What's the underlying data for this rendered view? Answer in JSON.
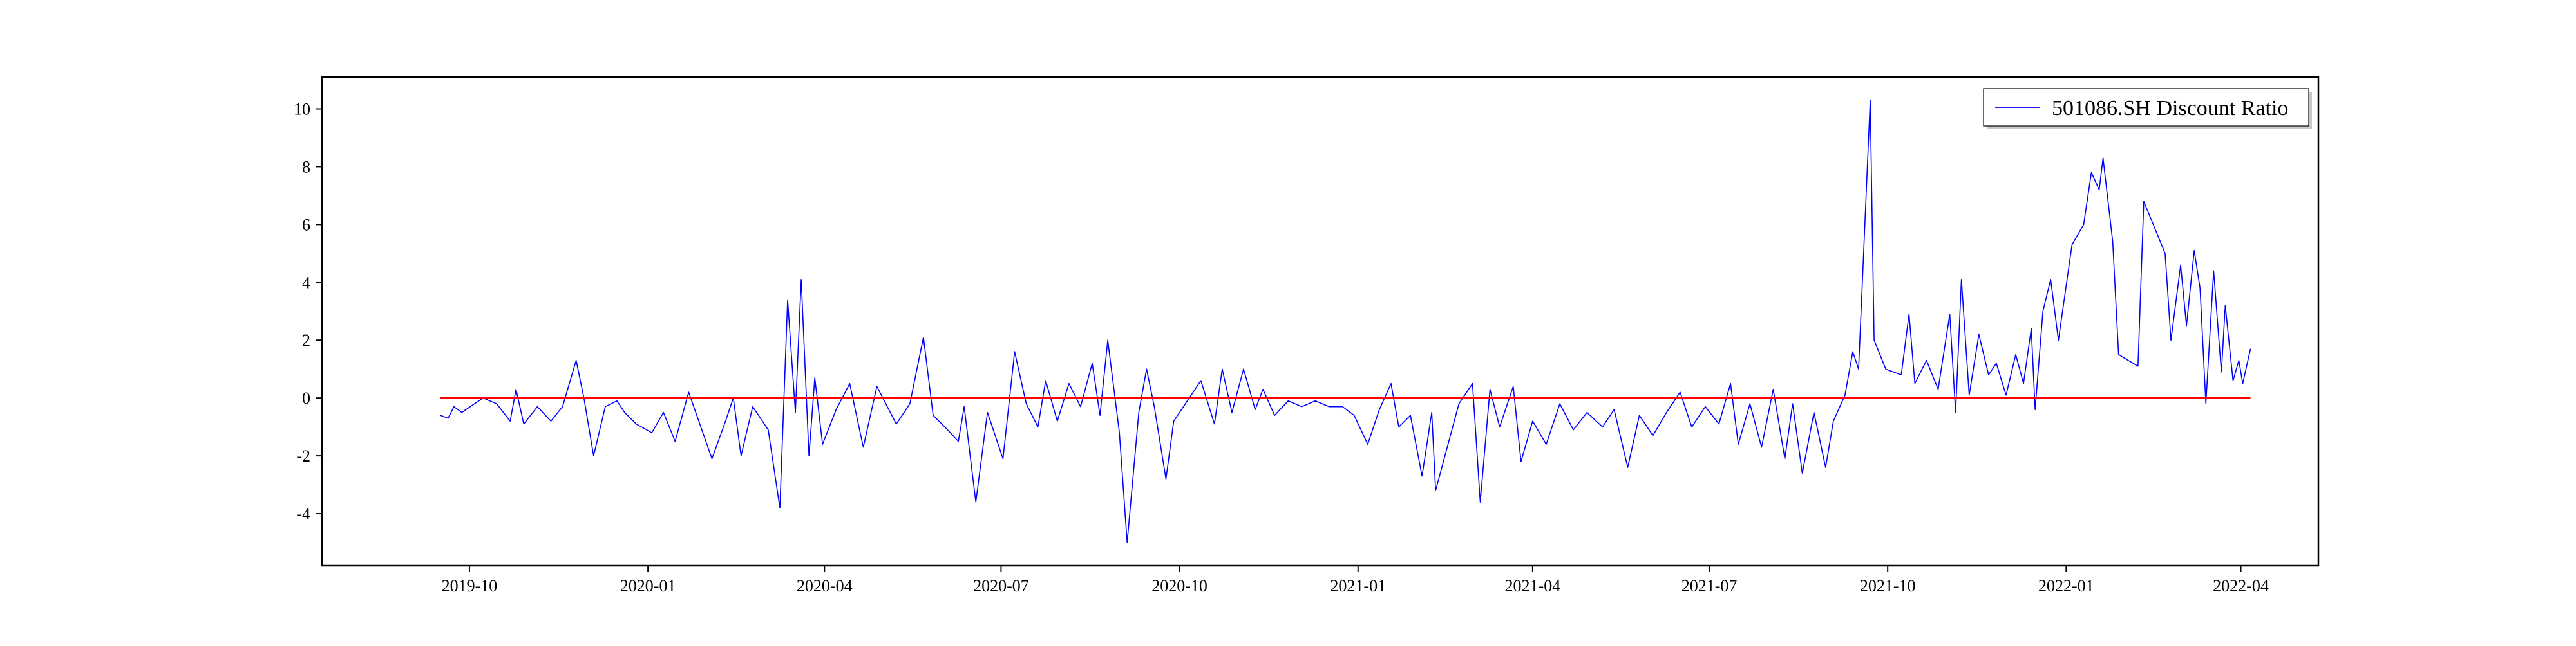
{
  "chart_data": {
    "type": "line",
    "title": "",
    "xlabel": "",
    "ylabel": "",
    "xlim": [
      "2019-07-17",
      "2022-05-11"
    ],
    "ylim": [
      -5.8,
      11.1
    ],
    "x_ticks": [
      {
        "date": "2019-10-01",
        "label": "2019-10"
      },
      {
        "date": "2020-01-01",
        "label": "2020-01"
      },
      {
        "date": "2020-04-01",
        "label": "2020-04"
      },
      {
        "date": "2020-07-01",
        "label": "2020-07"
      },
      {
        "date": "2020-10-01",
        "label": "2020-10"
      },
      {
        "date": "2021-01-01",
        "label": "2021-01"
      },
      {
        "date": "2021-04-01",
        "label": "2021-04"
      },
      {
        "date": "2021-07-01",
        "label": "2021-07"
      },
      {
        "date": "2021-10-01",
        "label": "2021-10"
      },
      {
        "date": "2022-01-01",
        "label": "2022-01"
      },
      {
        "date": "2022-04-01",
        "label": "2022-04"
      }
    ],
    "y_ticks": [
      -4,
      -2,
      0,
      2,
      4,
      6,
      8,
      10
    ],
    "grid": false,
    "legend": {
      "position": "top-right",
      "entries": [
        "501086.SH Discount Ratio"
      ]
    },
    "series": [
      {
        "name": "501086.SH Discount Ratio",
        "color": "#0000ff",
        "points": [
          [
            "2019-09-16",
            -0.6
          ],
          [
            "2019-09-20",
            -0.7
          ],
          [
            "2019-09-23",
            -0.3
          ],
          [
            "2019-09-27",
            -0.5
          ],
          [
            "2019-10-08",
            0.0
          ],
          [
            "2019-10-15",
            -0.2
          ],
          [
            "2019-10-22",
            -0.8
          ],
          [
            "2019-10-25",
            0.3
          ],
          [
            "2019-10-29",
            -0.9
          ],
          [
            "2019-11-05",
            -0.3
          ],
          [
            "2019-11-12",
            -0.8
          ],
          [
            "2019-11-18",
            -0.3
          ],
          [
            "2019-11-25",
            1.3
          ],
          [
            "2019-11-29",
            0.0
          ],
          [
            "2019-12-04",
            -2.0
          ],
          [
            "2019-12-10",
            -0.3
          ],
          [
            "2019-12-16",
            -0.1
          ],
          [
            "2019-12-20",
            -0.5
          ],
          [
            "2019-12-26",
            -0.9
          ],
          [
            "2020-01-03",
            -1.2
          ],
          [
            "2020-01-09",
            -0.5
          ],
          [
            "2020-01-15",
            -1.5
          ],
          [
            "2020-01-22",
            0.2
          ],
          [
            "2020-02-03",
            -2.1
          ],
          [
            "2020-02-10",
            -0.8
          ],
          [
            "2020-02-14",
            0.0
          ],
          [
            "2020-02-18",
            -2.0
          ],
          [
            "2020-02-24",
            -0.3
          ],
          [
            "2020-03-03",
            -1.1
          ],
          [
            "2020-03-09",
            -3.8
          ],
          [
            "2020-03-13",
            3.4
          ],
          [
            "2020-03-17",
            -0.5
          ],
          [
            "2020-03-20",
            4.1
          ],
          [
            "2020-03-24",
            -2.0
          ],
          [
            "2020-03-27",
            0.7
          ],
          [
            "2020-03-31",
            -1.6
          ],
          [
            "2020-04-07",
            -0.4
          ],
          [
            "2020-04-14",
            0.5
          ],
          [
            "2020-04-21",
            -1.7
          ],
          [
            "2020-04-28",
            0.4
          ],
          [
            "2020-05-08",
            -0.9
          ],
          [
            "2020-05-15",
            -0.2
          ],
          [
            "2020-05-22",
            2.1
          ],
          [
            "2020-05-27",
            -0.6
          ],
          [
            "2020-06-02",
            -1.0
          ],
          [
            "2020-06-09",
            -1.5
          ],
          [
            "2020-06-12",
            -0.3
          ],
          [
            "2020-06-18",
            -3.6
          ],
          [
            "2020-06-24",
            -0.5
          ],
          [
            "2020-07-02",
            -2.1
          ],
          [
            "2020-07-08",
            1.6
          ],
          [
            "2020-07-14",
            -0.2
          ],
          [
            "2020-07-20",
            -1.0
          ],
          [
            "2020-07-24",
            0.6
          ],
          [
            "2020-07-30",
            -0.8
          ],
          [
            "2020-08-05",
            0.5
          ],
          [
            "2020-08-11",
            -0.3
          ],
          [
            "2020-08-17",
            1.2
          ],
          [
            "2020-08-21",
            -0.6
          ],
          [
            "2020-08-25",
            2.0
          ],
          [
            "2020-08-31",
            -1.2
          ],
          [
            "2020-09-04",
            -5.0
          ],
          [
            "2020-09-10",
            -0.5
          ],
          [
            "2020-09-14",
            1.0
          ],
          [
            "2020-09-18",
            -0.3
          ],
          [
            "2020-09-24",
            -2.8
          ],
          [
            "2020-09-28",
            -0.8
          ],
          [
            "2020-10-12",
            0.6
          ],
          [
            "2020-10-19",
            -0.9
          ],
          [
            "2020-10-23",
            1.0
          ],
          [
            "2020-10-28",
            -0.5
          ],
          [
            "2020-11-03",
            1.0
          ],
          [
            "2020-11-09",
            -0.4
          ],
          [
            "2020-11-13",
            0.3
          ],
          [
            "2020-11-19",
            -0.6
          ],
          [
            "2020-11-26",
            -0.1
          ],
          [
            "2020-12-03",
            -0.3
          ],
          [
            "2020-12-10",
            -0.1
          ],
          [
            "2020-12-17",
            -0.3
          ],
          [
            "2020-12-24",
            -0.3
          ],
          [
            "2020-12-30",
            -0.6
          ],
          [
            "2021-01-06",
            -1.6
          ],
          [
            "2021-01-12",
            -0.4
          ],
          [
            "2021-01-18",
            0.5
          ],
          [
            "2021-01-22",
            -1.0
          ],
          [
            "2021-01-28",
            -0.6
          ],
          [
            "2021-02-03",
            -2.7
          ],
          [
            "2021-02-08",
            -0.5
          ],
          [
            "2021-02-10",
            -3.2
          ],
          [
            "2021-02-22",
            -0.2
          ],
          [
            "2021-03-01",
            0.5
          ],
          [
            "2021-03-05",
            -3.6
          ],
          [
            "2021-03-10",
            0.3
          ],
          [
            "2021-03-15",
            -1.0
          ],
          [
            "2021-03-22",
            0.4
          ],
          [
            "2021-03-26",
            -2.2
          ],
          [
            "2021-04-01",
            -0.8
          ],
          [
            "2021-04-08",
            -1.6
          ],
          [
            "2021-04-15",
            -0.2
          ],
          [
            "2021-04-22",
            -1.1
          ],
          [
            "2021-04-29",
            -0.5
          ],
          [
            "2021-05-07",
            -1.0
          ],
          [
            "2021-05-13",
            -0.4
          ],
          [
            "2021-05-20",
            -2.4
          ],
          [
            "2021-05-26",
            -0.6
          ],
          [
            "2021-06-02",
            -1.3
          ],
          [
            "2021-06-09",
            -0.5
          ],
          [
            "2021-06-16",
            0.2
          ],
          [
            "2021-06-22",
            -1.0
          ],
          [
            "2021-06-29",
            -0.3
          ],
          [
            "2021-07-06",
            -0.9
          ],
          [
            "2021-07-12",
            0.5
          ],
          [
            "2021-07-16",
            -1.6
          ],
          [
            "2021-07-22",
            -0.2
          ],
          [
            "2021-07-28",
            -1.7
          ],
          [
            "2021-08-03",
            0.3
          ],
          [
            "2021-08-09",
            -2.1
          ],
          [
            "2021-08-13",
            -0.2
          ],
          [
            "2021-08-18",
            -2.6
          ],
          [
            "2021-08-24",
            -0.5
          ],
          [
            "2021-08-30",
            -2.4
          ],
          [
            "2021-09-03",
            -0.8
          ],
          [
            "2021-09-09",
            0.1
          ],
          [
            "2021-09-13",
            1.6
          ],
          [
            "2021-09-16",
            1.0
          ],
          [
            "2021-09-22",
            10.3
          ],
          [
            "2021-09-24",
            2.0
          ],
          [
            "2021-09-30",
            1.0
          ],
          [
            "2021-10-08",
            0.8
          ],
          [
            "2021-10-12",
            2.9
          ],
          [
            "2021-10-15",
            0.5
          ],
          [
            "2021-10-21",
            1.3
          ],
          [
            "2021-10-27",
            0.3
          ],
          [
            "2021-11-02",
            2.9
          ],
          [
            "2021-11-05",
            -0.5
          ],
          [
            "2021-11-08",
            4.1
          ],
          [
            "2021-11-12",
            0.1
          ],
          [
            "2021-11-17",
            2.2
          ],
          [
            "2021-11-22",
            0.8
          ],
          [
            "2021-11-26",
            1.2
          ],
          [
            "2021-12-01",
            0.1
          ],
          [
            "2021-12-06",
            1.5
          ],
          [
            "2021-12-10",
            0.5
          ],
          [
            "2021-12-14",
            2.4
          ],
          [
            "2021-12-16",
            -0.4
          ],
          [
            "2021-12-20",
            3.0
          ],
          [
            "2021-12-24",
            4.1
          ],
          [
            "2021-12-28",
            2.0
          ],
          [
            "2022-01-04",
            5.3
          ],
          [
            "2022-01-10",
            6.0
          ],
          [
            "2022-01-14",
            7.8
          ],
          [
            "2022-01-18",
            7.2
          ],
          [
            "2022-01-20",
            8.3
          ],
          [
            "2022-01-25",
            5.4
          ],
          [
            "2022-01-28",
            1.5
          ],
          [
            "2022-02-07",
            1.1
          ],
          [
            "2022-02-10",
            6.8
          ],
          [
            "2022-02-21",
            5.0
          ],
          [
            "2022-02-24",
            2.0
          ],
          [
            "2022-03-01",
            4.6
          ],
          [
            "2022-03-04",
            2.5
          ],
          [
            "2022-03-08",
            5.1
          ],
          [
            "2022-03-11",
            3.8
          ],
          [
            "2022-03-14",
            -0.2
          ],
          [
            "2022-03-18",
            4.4
          ],
          [
            "2022-03-22",
            0.9
          ],
          [
            "2022-03-24",
            3.2
          ],
          [
            "2022-03-28",
            0.6
          ],
          [
            "2022-03-31",
            1.3
          ],
          [
            "2022-04-02",
            0.5
          ],
          [
            "2022-04-06",
            1.7
          ]
        ]
      },
      {
        "color": "#ff0000",
        "points": [
          [
            "2019-09-16",
            0
          ],
          [
            "2022-04-06",
            0
          ]
        ]
      }
    ]
  }
}
